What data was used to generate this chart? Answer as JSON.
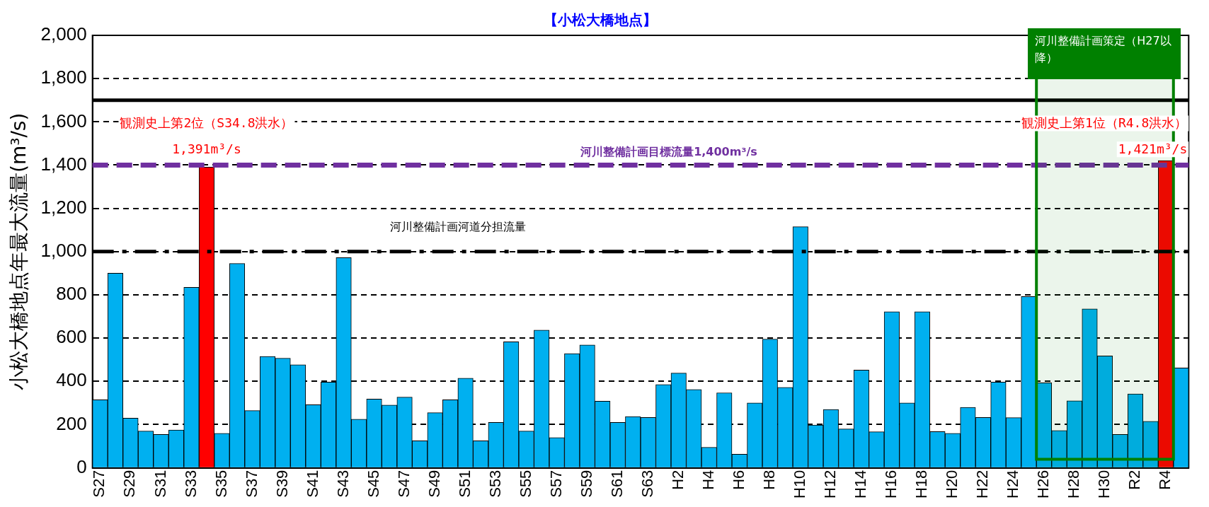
{
  "chart_data": {
    "type": "bar",
    "title": "【小松大橋地点】",
    "ylabel": "小松大橋地点年最大流量(m³/s)",
    "categories": [
      "S27",
      null,
      "S29",
      null,
      "S31",
      null,
      "S33",
      null,
      "S35",
      null,
      "S37",
      null,
      "S39",
      null,
      "S41",
      null,
      "S43",
      null,
      "S45",
      null,
      "S47",
      null,
      "S49",
      null,
      "S51",
      null,
      "S53",
      null,
      "S55",
      null,
      "S57",
      null,
      "S59",
      null,
      "S61",
      null,
      "S63",
      null,
      "H2",
      null,
      "H4",
      null,
      "H6",
      null,
      "H8",
      null,
      "H10",
      null,
      "H12",
      null,
      "H14",
      null,
      "H16",
      null,
      "H18",
      null,
      "H20",
      null,
      "H22",
      null,
      "H24",
      null,
      "H26",
      null,
      "H28",
      null,
      "H30",
      null,
      "R2",
      null,
      "R4",
      null
    ],
    "values": [
      315,
      900,
      230,
      170,
      155,
      175,
      835,
      1391,
      160,
      945,
      265,
      515,
      507,
      477,
      292,
      397,
      972,
      225,
      318,
      290,
      327,
      125,
      255,
      315,
      415,
      125,
      210,
      583,
      170,
      637,
      140,
      528,
      568,
      308,
      210,
      237,
      233,
      385,
      438,
      362,
      95,
      347,
      63,
      300,
      595,
      372,
      1115,
      198,
      270,
      180,
      452,
      167,
      722,
      300,
      722,
      168,
      160,
      280,
      233,
      397,
      232,
      792,
      393,
      173,
      310,
      735,
      518,
      155,
      342,
      215,
      1421,
      462
    ],
    "colors": [
      "#00b0f0",
      "#00b0f0",
      "#00b0f0",
      "#00b0f0",
      "#00b0f0",
      "#00b0f0",
      "#00b0f0",
      "#ff0000",
      "#00b0f0",
      "#00b0f0",
      "#00b0f0",
      "#00b0f0",
      "#00b0f0",
      "#00b0f0",
      "#00b0f0",
      "#00b0f0",
      "#00b0f0",
      "#00b0f0",
      "#00b0f0",
      "#00b0f0",
      "#00b0f0",
      "#00b0f0",
      "#00b0f0",
      "#00b0f0",
      "#00b0f0",
      "#00b0f0",
      "#00b0f0",
      "#00b0f0",
      "#00b0f0",
      "#00b0f0",
      "#00b0f0",
      "#00b0f0",
      "#00b0f0",
      "#00b0f0",
      "#00b0f0",
      "#00b0f0",
      "#00b0f0",
      "#00b0f0",
      "#00b0f0",
      "#00b0f0",
      "#00b0f0",
      "#00b0f0",
      "#00b0f0",
      "#00b0f0",
      "#00b0f0",
      "#00b0f0",
      "#00b0f0",
      "#00b0f0",
      "#00b0f0",
      "#00b0f0",
      "#00b0f0",
      "#00b0f0",
      "#00b0f0",
      "#00b0f0",
      "#00b0f0",
      "#00b0f0",
      "#00b0f0",
      "#00b0f0",
      "#00b0f0",
      "#00b0f0",
      "#00b0f0",
      "#00b0f0",
      "#00b0f0",
      "#00b0f0",
      "#00b0f0",
      "#00b0f0",
      "#00b0f0",
      "#00b0f0",
      "#00b0f0",
      "#00b0f0",
      "#ff0000",
      "#00b0f0"
    ],
    "value_labels": [
      null,
      null,
      null,
      null,
      null,
      null,
      null,
      "1,391m³/s",
      null,
      null,
      null,
      null,
      null,
      null,
      null,
      null,
      null,
      null,
      null,
      null,
      null,
      null,
      null,
      null,
      null,
      null,
      null,
      null,
      null,
      null,
      null,
      null,
      null,
      null,
      null,
      null,
      null,
      null,
      null,
      null,
      null,
      null,
      null,
      null,
      null,
      null,
      null,
      null,
      null,
      null,
      null,
      null,
      null,
      null,
      null,
      null,
      null,
      null,
      null,
      null,
      null,
      null,
      null,
      null,
      null,
      null,
      null,
      null,
      null,
      null,
      "1,421m³/s",
      null
    ],
    "ylim": [
      0,
      2000
    ],
    "yticks": [
      0,
      200,
      400,
      600,
      800,
      {
        "value": 1000,
        "label": "1,000"
      },
      {
        "value": 1200,
        "label": "1,200"
      },
      {
        "value": 1400,
        "label": "1,400"
      },
      {
        "value": 1600,
        "label": "1,600"
      },
      {
        "value": 1800,
        "label": "1,800"
      },
      {
        "value": 2000,
        "label": "2,000"
      }
    ],
    "grid": "y",
    "ref_lines": [
      {
        "axis": "y",
        "value": 1700,
        "color": "#000000",
        "line_style": "solid"
      },
      {
        "axis": "y",
        "value": 1400,
        "label": "河川整備計画目標流量1,400m³/s",
        "color": "#7030a0",
        "line_style": "dashed"
      },
      {
        "axis": "y",
        "value": 1000,
        "label": "河川整備計画河道分担流量",
        "color": "#000000",
        "line_style": "dashed"
      }
    ],
    "bands": [
      {
        "axis": "x",
        "from": "H26",
        "to": "R4",
        "label": "河川整備計画策定（H27以降）",
        "color": "#008000"
      }
    ],
    "annotations": [
      "観測史上第2位（S34.8洪水）",
      "観測史上第1位（R4.8洪水）"
    ]
  }
}
